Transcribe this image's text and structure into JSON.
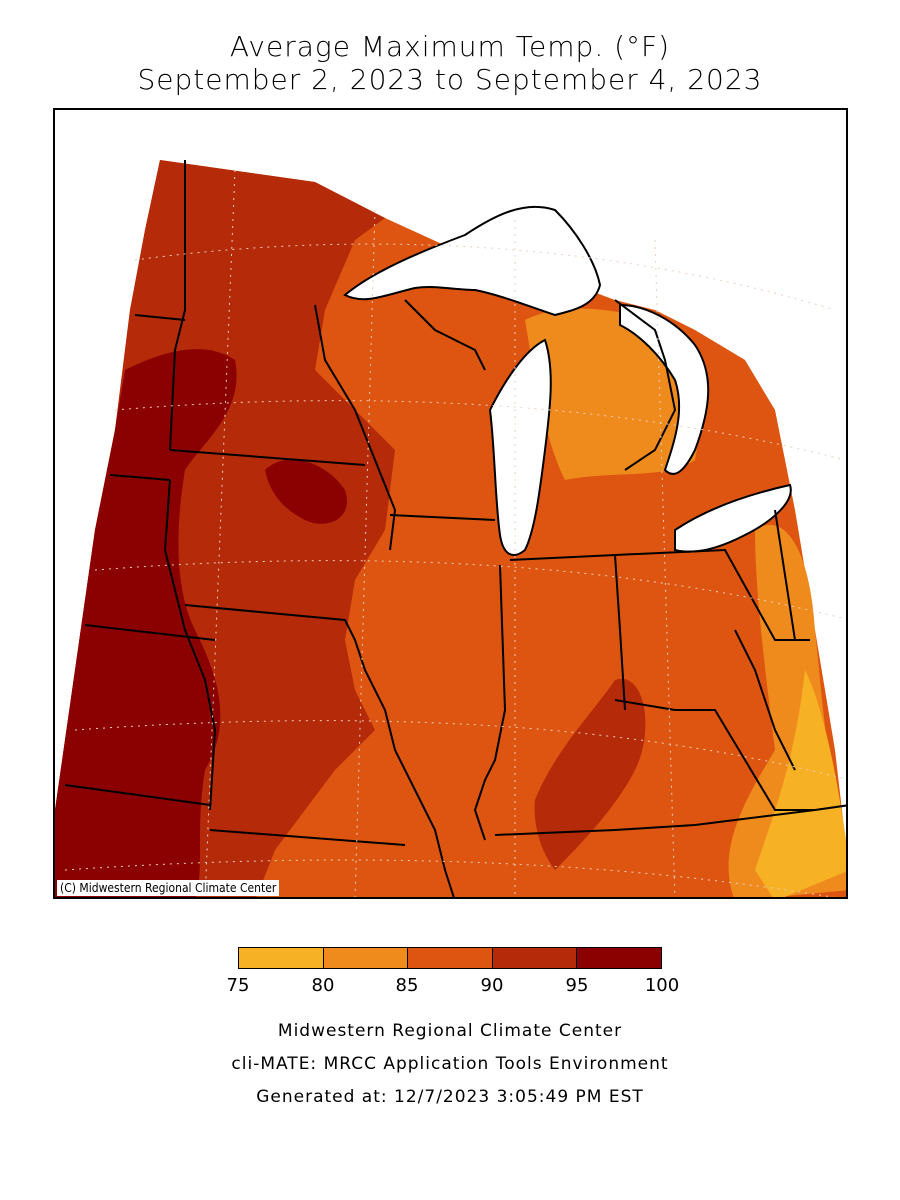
{
  "title": {
    "line1": "Average Maximum Temp. (°F)",
    "line2": "September 2, 2023 to September 4, 2023"
  },
  "map": {
    "region": "Midwest US",
    "copyright": "(C) Midwestern Regional Climate Center",
    "colors": {
      "75-80": "#f7b125",
      "80-85": "#ef8b1c",
      "85-90": "#dd5510",
      "90-95": "#b52a09",
      "95-100": "#8b0000",
      "water": "#ffffff",
      "borders": "#000000"
    }
  },
  "legend": {
    "ticks": [
      "75",
      "80",
      "85",
      "90",
      "95",
      "100"
    ],
    "colors": [
      "#f7b125",
      "#ef8b1c",
      "#dd5510",
      "#b52a09",
      "#8b0000"
    ]
  },
  "footer": {
    "line1": "Midwestern Regional Climate Center",
    "line2": "cli-MATE: MRCC Application Tools Environment",
    "line3": "Generated at: 12/7/2023 3:05:49 PM EST"
  }
}
